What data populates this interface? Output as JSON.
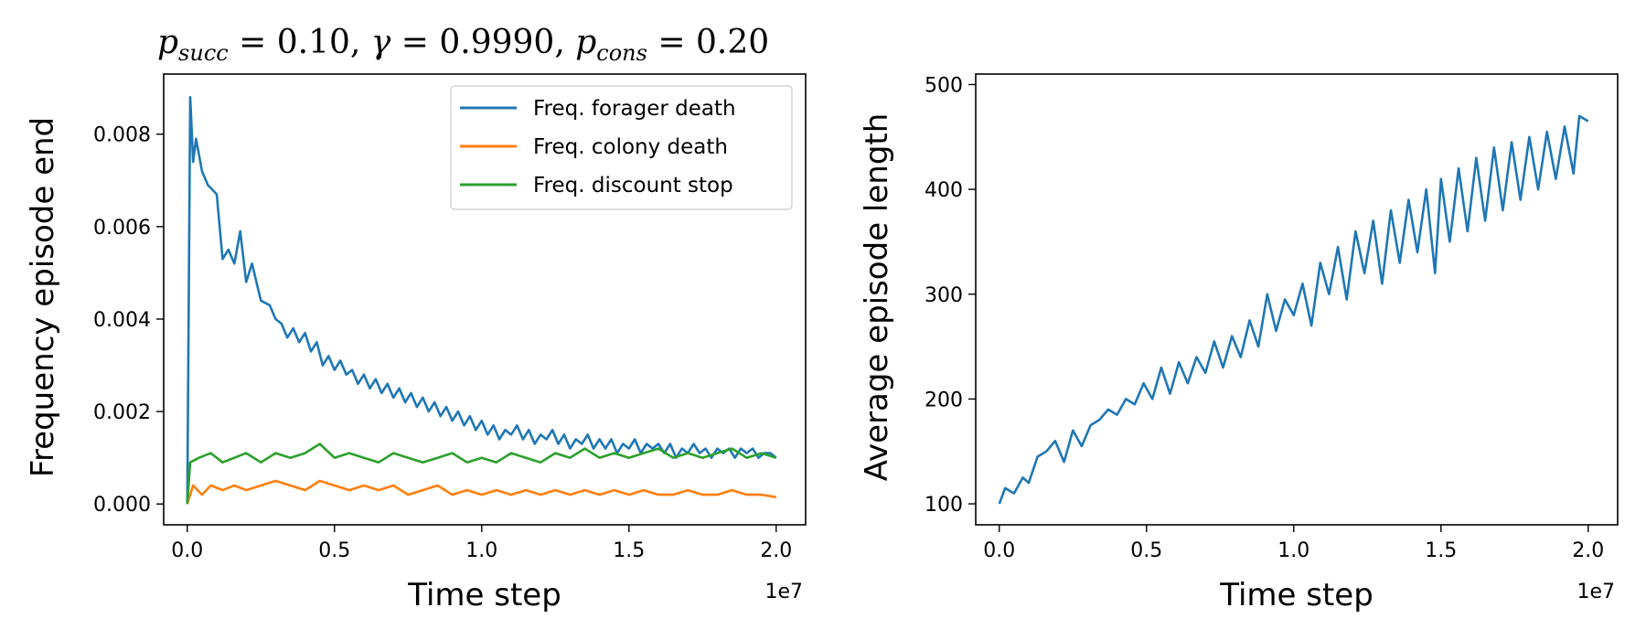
{
  "chart_data": [
    {
      "type": "line",
      "title": "p_succ = 0.10, γ = 0.9990, p_cons = 0.20",
      "title_parts": {
        "p1_base": "p",
        "p1_sub": "succ",
        "p1_val": " = 0.10, ",
        "gamma": "γ",
        "gamma_val": " = 0.9990, ",
        "p2_base": "p",
        "p2_sub": "cons",
        "p2_val": " = 0.20"
      },
      "xlabel": "Time step",
      "ylabel": "Frequency episode end",
      "x_offset_label": "1e7",
      "xlim": [
        -0.08,
        2.1
      ],
      "ylim": [
        -0.00045,
        0.0093
      ],
      "xticks": [
        0.0,
        0.5,
        1.0,
        1.5,
        2.0
      ],
      "xtick_labels": [
        "0.0",
        "0.5",
        "1.0",
        "1.5",
        "2.0"
      ],
      "yticks": [
        0.0,
        0.002,
        0.004,
        0.006,
        0.008
      ],
      "ytick_labels": [
        "0.000",
        "0.002",
        "0.004",
        "0.006",
        "0.008"
      ],
      "grid": false,
      "legend_position": "top-right",
      "series": [
        {
          "name": "Freq. forager death",
          "color": "#1f77b4",
          "points": [
            [
              0.0,
              0.0
            ],
            [
              0.01,
              0.0088
            ],
            [
              0.02,
              0.0074
            ],
            [
              0.03,
              0.0079
            ],
            [
              0.05,
              0.0072
            ],
            [
              0.07,
              0.0069
            ],
            [
              0.1,
              0.0067
            ],
            [
              0.12,
              0.0053
            ],
            [
              0.14,
              0.0055
            ],
            [
              0.16,
              0.0052
            ],
            [
              0.18,
              0.0059
            ],
            [
              0.2,
              0.0048
            ],
            [
              0.22,
              0.0052
            ],
            [
              0.25,
              0.0044
            ],
            [
              0.28,
              0.0043
            ],
            [
              0.3,
              0.004
            ],
            [
              0.32,
              0.0039
            ],
            [
              0.34,
              0.0036
            ],
            [
              0.36,
              0.0038
            ],
            [
              0.38,
              0.0035
            ],
            [
              0.4,
              0.0037
            ],
            [
              0.42,
              0.0033
            ],
            [
              0.44,
              0.0035
            ],
            [
              0.46,
              0.003
            ],
            [
              0.48,
              0.0032
            ],
            [
              0.5,
              0.0029
            ],
            [
              0.52,
              0.0031
            ],
            [
              0.54,
              0.0028
            ],
            [
              0.56,
              0.0029
            ],
            [
              0.58,
              0.0026
            ],
            [
              0.6,
              0.0028
            ],
            [
              0.62,
              0.0025
            ],
            [
              0.64,
              0.0027
            ],
            [
              0.66,
              0.0024
            ],
            [
              0.68,
              0.0026
            ],
            [
              0.7,
              0.0023
            ],
            [
              0.72,
              0.0025
            ],
            [
              0.74,
              0.0022
            ],
            [
              0.76,
              0.0024
            ],
            [
              0.78,
              0.0021
            ],
            [
              0.8,
              0.0023
            ],
            [
              0.82,
              0.002
            ],
            [
              0.84,
              0.0022
            ],
            [
              0.86,
              0.0019
            ],
            [
              0.88,
              0.0021
            ],
            [
              0.9,
              0.0018
            ],
            [
              0.92,
              0.002
            ],
            [
              0.94,
              0.0017
            ],
            [
              0.96,
              0.0019
            ],
            [
              0.98,
              0.0016
            ],
            [
              1.0,
              0.0018
            ],
            [
              1.02,
              0.0015
            ],
            [
              1.04,
              0.0017
            ],
            [
              1.06,
              0.0014
            ],
            [
              1.08,
              0.0016
            ],
            [
              1.1,
              0.0015
            ],
            [
              1.12,
              0.0017
            ],
            [
              1.14,
              0.0014
            ],
            [
              1.16,
              0.0016
            ],
            [
              1.18,
              0.0013
            ],
            [
              1.2,
              0.0015
            ],
            [
              1.22,
              0.0014
            ],
            [
              1.24,
              0.0016
            ],
            [
              1.26,
              0.0013
            ],
            [
              1.28,
              0.0015
            ],
            [
              1.3,
              0.0012
            ],
            [
              1.32,
              0.0014
            ],
            [
              1.34,
              0.0013
            ],
            [
              1.36,
              0.0015
            ],
            [
              1.38,
              0.0012
            ],
            [
              1.4,
              0.0014
            ],
            [
              1.42,
              0.0012
            ],
            [
              1.44,
              0.0014
            ],
            [
              1.46,
              0.0011
            ],
            [
              1.48,
              0.0013
            ],
            [
              1.5,
              0.0012
            ],
            [
              1.52,
              0.0014
            ],
            [
              1.54,
              0.0011
            ],
            [
              1.56,
              0.0013
            ],
            [
              1.58,
              0.0012
            ],
            [
              1.6,
              0.0013
            ],
            [
              1.62,
              0.0011
            ],
            [
              1.64,
              0.0013
            ],
            [
              1.66,
              0.001
            ],
            [
              1.68,
              0.0012
            ],
            [
              1.7,
              0.0011
            ],
            [
              1.72,
              0.0013
            ],
            [
              1.74,
              0.0011
            ],
            [
              1.76,
              0.0012
            ],
            [
              1.78,
              0.001
            ],
            [
              1.8,
              0.0012
            ],
            [
              1.82,
              0.0011
            ],
            [
              1.84,
              0.0012
            ],
            [
              1.86,
              0.001
            ],
            [
              1.88,
              0.0012
            ],
            [
              1.9,
              0.0011
            ],
            [
              1.92,
              0.0012
            ],
            [
              1.94,
              0.001
            ],
            [
              1.96,
              0.0011
            ],
            [
              1.98,
              0.0011
            ],
            [
              2.0,
              0.001
            ]
          ]
        },
        {
          "name": "Freq. colony death",
          "color": "#ff7f0e",
          "points": [
            [
              0.0,
              0.0
            ],
            [
              0.02,
              0.0004
            ],
            [
              0.05,
              0.0002
            ],
            [
              0.08,
              0.0004
            ],
            [
              0.12,
              0.0003
            ],
            [
              0.16,
              0.0004
            ],
            [
              0.2,
              0.0003
            ],
            [
              0.25,
              0.0004
            ],
            [
              0.3,
              0.0005
            ],
            [
              0.35,
              0.0004
            ],
            [
              0.4,
              0.0003
            ],
            [
              0.45,
              0.0005
            ],
            [
              0.5,
              0.0004
            ],
            [
              0.55,
              0.0003
            ],
            [
              0.6,
              0.0004
            ],
            [
              0.65,
              0.0003
            ],
            [
              0.7,
              0.0004
            ],
            [
              0.75,
              0.0002
            ],
            [
              0.8,
              0.0003
            ],
            [
              0.85,
              0.0004
            ],
            [
              0.9,
              0.0002
            ],
            [
              0.95,
              0.0003
            ],
            [
              1.0,
              0.0002
            ],
            [
              1.05,
              0.0003
            ],
            [
              1.1,
              0.0002
            ],
            [
              1.15,
              0.0003
            ],
            [
              1.2,
              0.0002
            ],
            [
              1.25,
              0.0003
            ],
            [
              1.3,
              0.0002
            ],
            [
              1.35,
              0.0003
            ],
            [
              1.4,
              0.0002
            ],
            [
              1.45,
              0.0003
            ],
            [
              1.5,
              0.0002
            ],
            [
              1.55,
              0.0003
            ],
            [
              1.6,
              0.0002
            ],
            [
              1.65,
              0.0002
            ],
            [
              1.7,
              0.0003
            ],
            [
              1.75,
              0.0002
            ],
            [
              1.8,
              0.0002
            ],
            [
              1.85,
              0.0003
            ],
            [
              1.9,
              0.0002
            ],
            [
              1.95,
              0.0002
            ],
            [
              2.0,
              0.00015
            ]
          ]
        },
        {
          "name": "Freq. discount stop",
          "color": "#2ca02c",
          "points": [
            [
              0.0,
              0.0
            ],
            [
              0.01,
              0.0009
            ],
            [
              0.04,
              0.001
            ],
            [
              0.08,
              0.0011
            ],
            [
              0.12,
              0.0009
            ],
            [
              0.16,
              0.001
            ],
            [
              0.2,
              0.0011
            ],
            [
              0.25,
              0.0009
            ],
            [
              0.3,
              0.0011
            ],
            [
              0.35,
              0.001
            ],
            [
              0.4,
              0.0011
            ],
            [
              0.45,
              0.0013
            ],
            [
              0.5,
              0.001
            ],
            [
              0.55,
              0.0011
            ],
            [
              0.6,
              0.001
            ],
            [
              0.65,
              0.0009
            ],
            [
              0.7,
              0.0011
            ],
            [
              0.75,
              0.001
            ],
            [
              0.8,
              0.0009
            ],
            [
              0.85,
              0.001
            ],
            [
              0.9,
              0.0011
            ],
            [
              0.95,
              0.0009
            ],
            [
              1.0,
              0.001
            ],
            [
              1.05,
              0.0009
            ],
            [
              1.1,
              0.0011
            ],
            [
              1.15,
              0.001
            ],
            [
              1.2,
              0.0009
            ],
            [
              1.25,
              0.0011
            ],
            [
              1.3,
              0.001
            ],
            [
              1.35,
              0.0012
            ],
            [
              1.4,
              0.001
            ],
            [
              1.45,
              0.0011
            ],
            [
              1.5,
              0.001
            ],
            [
              1.55,
              0.0011
            ],
            [
              1.6,
              0.0012
            ],
            [
              1.65,
              0.001
            ],
            [
              1.7,
              0.0011
            ],
            [
              1.75,
              0.001
            ],
            [
              1.8,
              0.0011
            ],
            [
              1.85,
              0.0012
            ],
            [
              1.9,
              0.001
            ],
            [
              1.95,
              0.0011
            ],
            [
              2.0,
              0.001
            ]
          ]
        }
      ]
    },
    {
      "type": "line",
      "title": "",
      "xlabel": "Time step",
      "ylabel": "Average episode length",
      "x_offset_label": "1e7",
      "xlim": [
        -0.08,
        2.1
      ],
      "ylim": [
        80,
        510
      ],
      "xticks": [
        0.0,
        0.5,
        1.0,
        1.5,
        2.0
      ],
      "xtick_labels": [
        "0.0",
        "0.5",
        "1.0",
        "1.5",
        "2.0"
      ],
      "yticks": [
        100,
        200,
        300,
        400,
        500
      ],
      "ytick_labels": [
        "100",
        "200",
        "300",
        "400",
        "500"
      ],
      "grid": false,
      "series": [
        {
          "color": "#1f77b4",
          "points": [
            [
              0.0,
              100
            ],
            [
              0.02,
              115
            ],
            [
              0.05,
              110
            ],
            [
              0.08,
              125
            ],
            [
              0.1,
              120
            ],
            [
              0.13,
              145
            ],
            [
              0.16,
              150
            ],
            [
              0.19,
              160
            ],
            [
              0.22,
              140
            ],
            [
              0.25,
              170
            ],
            [
              0.28,
              155
            ],
            [
              0.31,
              175
            ],
            [
              0.34,
              180
            ],
            [
              0.37,
              190
            ],
            [
              0.4,
              185
            ],
            [
              0.43,
              200
            ],
            [
              0.46,
              195
            ],
            [
              0.49,
              215
            ],
            [
              0.52,
              200
            ],
            [
              0.55,
              230
            ],
            [
              0.58,
              205
            ],
            [
              0.61,
              235
            ],
            [
              0.64,
              215
            ],
            [
              0.67,
              240
            ],
            [
              0.7,
              225
            ],
            [
              0.73,
              255
            ],
            [
              0.76,
              230
            ],
            [
              0.79,
              260
            ],
            [
              0.82,
              240
            ],
            [
              0.85,
              275
            ],
            [
              0.88,
              250
            ],
            [
              0.91,
              300
            ],
            [
              0.94,
              265
            ],
            [
              0.97,
              295
            ],
            [
              1.0,
              280
            ],
            [
              1.03,
              310
            ],
            [
              1.06,
              270
            ],
            [
              1.09,
              330
            ],
            [
              1.12,
              300
            ],
            [
              1.15,
              345
            ],
            [
              1.18,
              295
            ],
            [
              1.21,
              360
            ],
            [
              1.24,
              320
            ],
            [
              1.27,
              370
            ],
            [
              1.3,
              310
            ],
            [
              1.33,
              380
            ],
            [
              1.36,
              330
            ],
            [
              1.39,
              390
            ],
            [
              1.42,
              340
            ],
            [
              1.45,
              400
            ],
            [
              1.48,
              320
            ],
            [
              1.5,
              410
            ],
            [
              1.53,
              350
            ],
            [
              1.56,
              420
            ],
            [
              1.59,
              360
            ],
            [
              1.62,
              430
            ],
            [
              1.65,
              370
            ],
            [
              1.68,
              440
            ],
            [
              1.71,
              380
            ],
            [
              1.74,
              445
            ],
            [
              1.77,
              390
            ],
            [
              1.8,
              450
            ],
            [
              1.83,
              400
            ],
            [
              1.86,
              455
            ],
            [
              1.89,
              410
            ],
            [
              1.92,
              460
            ],
            [
              1.95,
              415
            ],
            [
              1.97,
              470
            ],
            [
              2.0,
              465
            ]
          ]
        }
      ]
    }
  ]
}
